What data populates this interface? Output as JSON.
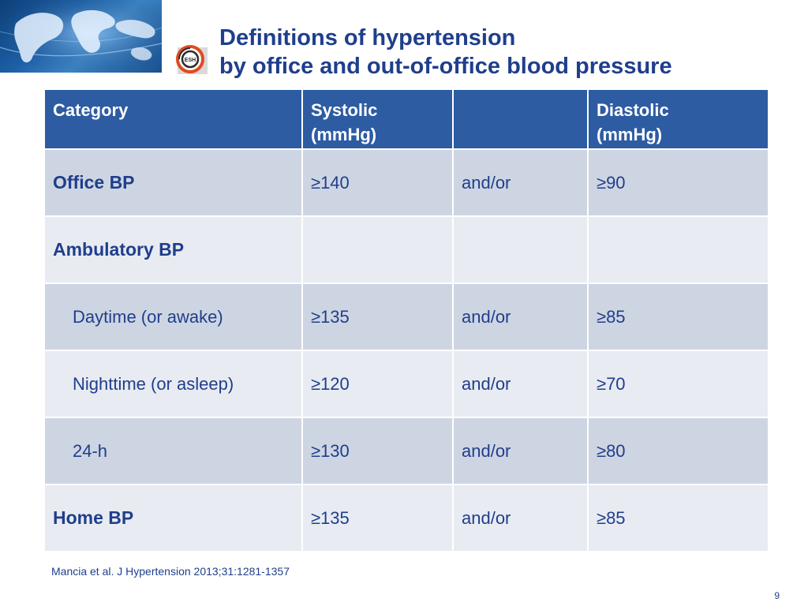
{
  "title": {
    "line1": "Definitions of hypertension",
    "line2": "by office and out-of-office blood pressure"
  },
  "logo": {
    "text": "ESH",
    "colors": {
      "ring": "#e04a1f",
      "inner": "#2b2b2b"
    }
  },
  "colors": {
    "title": "#1f3e8c",
    "header_bg": "#2d5ca3",
    "row_dark": "#ced5e2",
    "row_light": "#e8ebf1"
  },
  "table": {
    "headers": {
      "category": "Category",
      "systolic_line1": "Systolic",
      "systolic_line2": "(mmHg)",
      "middle": "",
      "diastolic_line1": "Diastolic",
      "diastolic_line2": "(mmHg)"
    },
    "rows": [
      {
        "category": "Office BP",
        "systolic": "≥140",
        "conj": "and/or",
        "diastolic": "≥90"
      },
      {
        "category": "Ambulatory BP",
        "systolic": "",
        "conj": "",
        "diastolic": ""
      },
      {
        "category": "Daytime (or awake)",
        "systolic": "≥135",
        "conj": "and/or",
        "diastolic": "≥85"
      },
      {
        "category": "Nighttime (or asleep)",
        "systolic": "≥120",
        "conj": "and/or",
        "diastolic": "≥70"
      },
      {
        "category": "24-h",
        "systolic": "≥130",
        "conj": "and/or",
        "diastolic": "≥80"
      },
      {
        "category": "Home BP",
        "systolic": "≥135",
        "conj": "and/or",
        "diastolic": "≥85"
      }
    ]
  },
  "citation": "Mancia et al. J Hypertension 2013;31:1281-1357",
  "page_number": "9"
}
